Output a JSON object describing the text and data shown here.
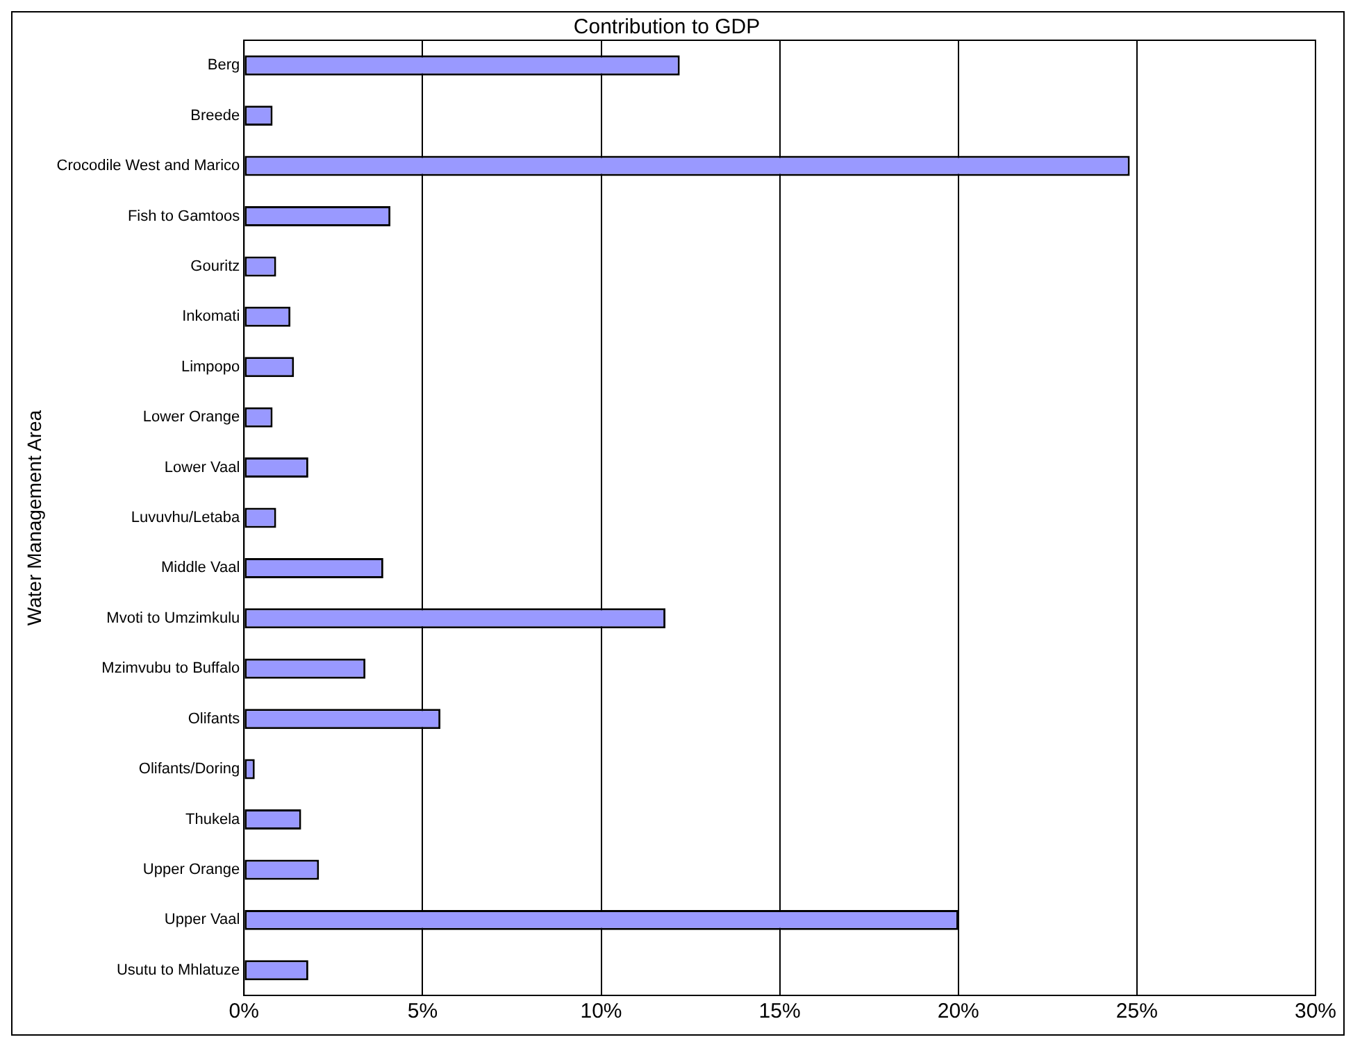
{
  "chart_data": {
    "type": "bar",
    "orientation": "horizontal",
    "title": "Contribution to GDP",
    "ylabel": "Water Management Area",
    "categories": [
      "Berg",
      "Breede",
      "Crocodile West and Marico",
      "Fish to Gamtoos",
      "Gouritz",
      "Inkomati",
      "Limpopo",
      "Lower Orange",
      "Lower Vaal",
      "Luvuvhu/Letaba",
      "Middle Vaal",
      "Mvoti to Umzimkulu",
      "Mzimvubu to Buffalo",
      "Olifants",
      "Olifants/Doring",
      "Thukela",
      "Upper Orange",
      "Upper Vaal",
      "Usutu to Mhlatuze"
    ],
    "values": [
      12.2,
      0.8,
      24.8,
      4.1,
      0.9,
      1.3,
      1.4,
      0.8,
      1.8,
      0.9,
      3.9,
      11.8,
      3.4,
      5.5,
      0.3,
      1.6,
      2.1,
      20.0,
      1.8
    ],
    "color": "#9999ff",
    "xlim": [
      0,
      30
    ],
    "xticks": [
      {
        "value": 0,
        "label": "0%"
      },
      {
        "value": 5,
        "label": "5%"
      },
      {
        "value": 10,
        "label": "10%"
      },
      {
        "value": 15,
        "label": "15%"
      },
      {
        "value": 20,
        "label": "20%"
      },
      {
        "value": 25,
        "label": "25%"
      },
      {
        "value": 30,
        "label": "30%"
      }
    ],
    "grid": "x",
    "legend": false
  }
}
